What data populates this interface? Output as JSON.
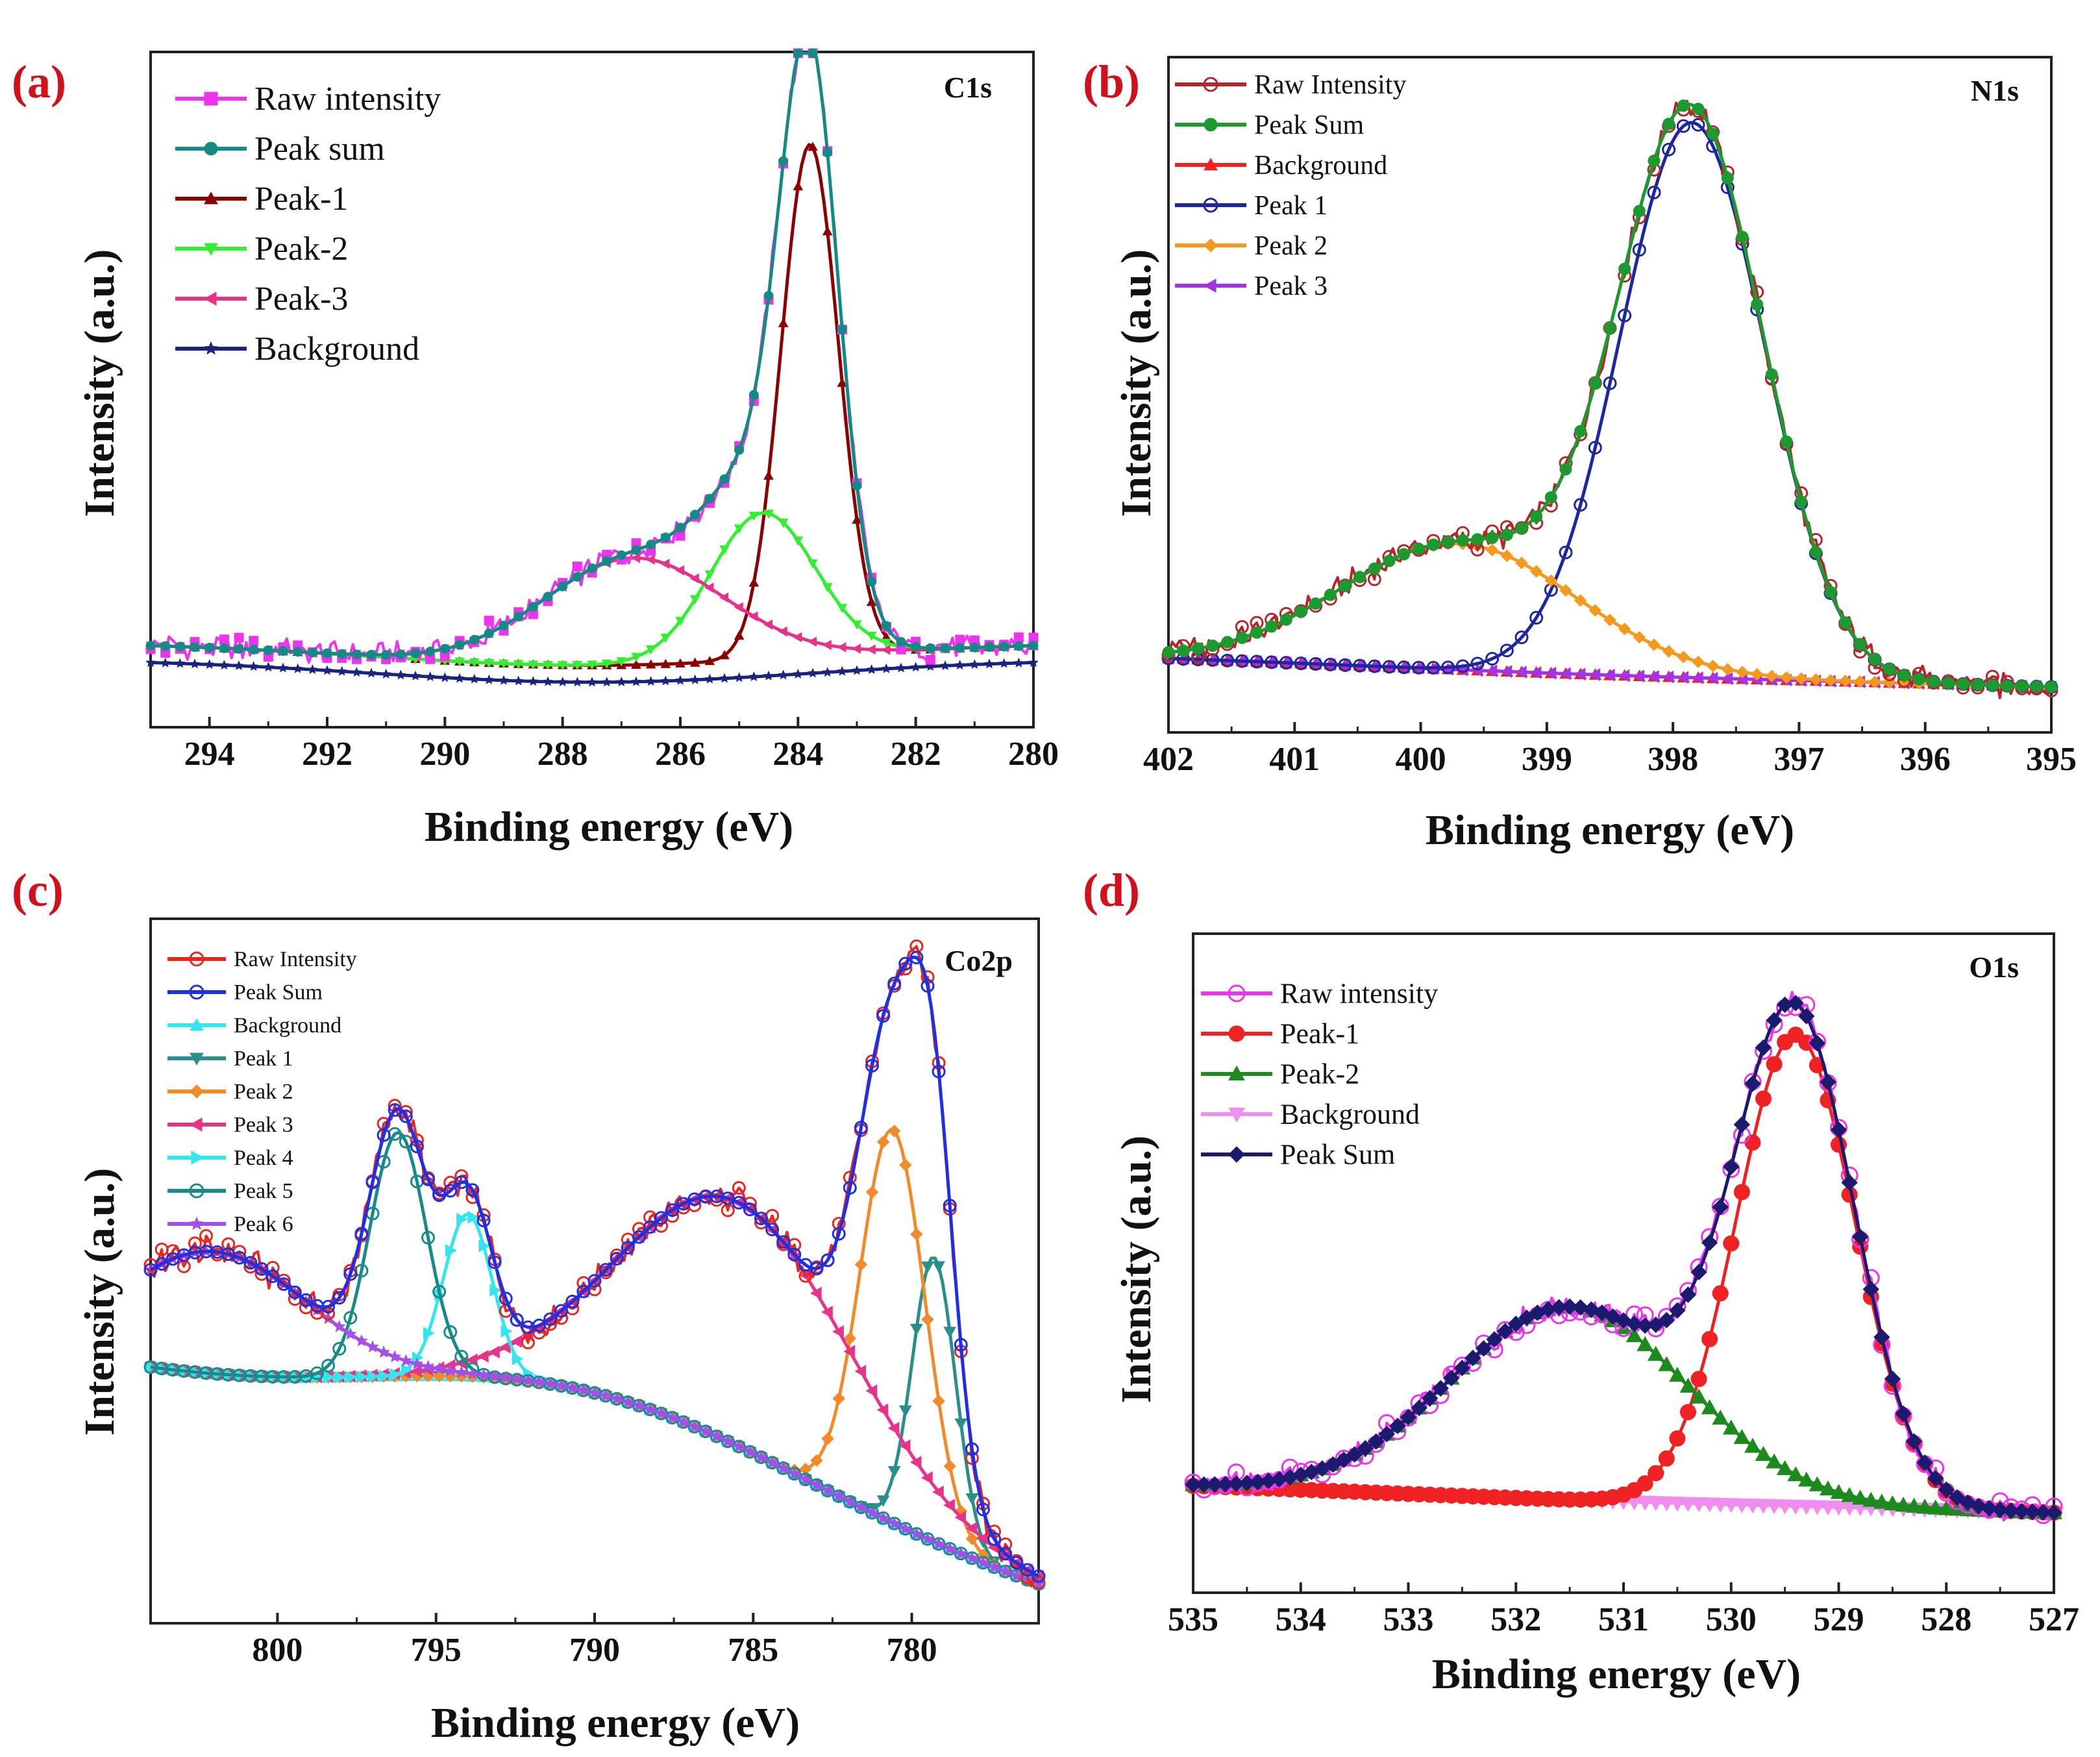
{
  "figure": {
    "background": "#ffffff"
  },
  "chart_data": [
    {
      "id": "a",
      "type": "line",
      "panel_label": "(a)",
      "title": "C1s",
      "xlabel": "Binding energy (eV)",
      "ylabel": "Intensity (a.u.)",
      "xlim": [
        295,
        280
      ],
      "ylim": [
        -0.12,
        1.08
      ],
      "xticks": [
        294,
        292,
        290,
        288,
        286,
        284,
        282,
        280
      ],
      "xtick_labels": [
        "294",
        "292",
        "290",
        "288",
        "286",
        "284",
        "282",
        "280"
      ],
      "legend": [
        "Raw intensity",
        "Peak sum",
        "Peak-1",
        "Peak-2",
        "Peak-3",
        "Background"
      ],
      "baseline": 0.03,
      "background": {
        "left": 0.0,
        "mid": -0.04,
        "right": 0.0,
        "center": 287.5
      },
      "peaks": [
        {
          "name": "Peak-1",
          "center": 283.8,
          "fwhm": 1.15,
          "height": 0.91,
          "color": "#8b0000"
        },
        {
          "name": "Peak-2",
          "center": 284.6,
          "fwhm": 2.1,
          "height": 0.26,
          "color": "#33ee33"
        },
        {
          "name": "Peak-3",
          "center": 286.8,
          "fwhm": 3.6,
          "height": 0.19,
          "color": "#e6338a"
        }
      ],
      "series": [
        {
          "name": "Raw intensity",
          "role": "raw",
          "color": "#ee33ee",
          "marker": "square"
        },
        {
          "name": "Peak sum",
          "role": "sum",
          "color": "#138a86",
          "marker": "circle"
        },
        {
          "name": "Peak-1",
          "role": "peak",
          "peak": 0,
          "color": "#8b0000",
          "marker": "triangle"
        },
        {
          "name": "Peak-2",
          "role": "peak",
          "peak": 1,
          "color": "#33ee33",
          "marker": "tri-down"
        },
        {
          "name": "Peak-3",
          "role": "peak",
          "peak": 2,
          "color": "#e6338a",
          "marker": "tri-left"
        },
        {
          "name": "Background",
          "role": "background",
          "color": "#1a237e",
          "marker": "star"
        }
      ]
    },
    {
      "id": "b",
      "type": "line",
      "panel_label": "(b)",
      "title": "N1s",
      "xlabel": "Binding energy (eV)",
      "ylabel": "Intensity (a.u.)",
      "xlim": [
        402,
        395
      ],
      "ylim": [
        -0.08,
        1.1
      ],
      "xticks": [
        402,
        401,
        400,
        399,
        398,
        397,
        396,
        395
      ],
      "xtick_labels": [
        "402",
        "401",
        "400",
        "399",
        "398",
        "397",
        "396",
        "395"
      ],
      "legend": [
        "Raw Intensity",
        "Peak Sum",
        "Background",
        "Peak 1",
        "Peak 2",
        "Peak 3"
      ],
      "baseline": 0.0,
      "background": {
        "left": 0.05,
        "mid": 0.02,
        "right": 0.0,
        "center": 398.5
      },
      "peaks": [
        {
          "name": "Peak 1",
          "center": 397.85,
          "fwhm": 1.35,
          "height": 0.97,
          "color": "#1c27a0"
        },
        {
          "name": "Peak 2",
          "center": 399.7,
          "fwhm": 2.2,
          "height": 0.22,
          "color": "#f39a1e"
        }
      ],
      "series": [
        {
          "name": "Raw Intensity",
          "role": "raw",
          "color": "#b3282d",
          "marker": "circle-open"
        },
        {
          "name": "Peak Sum",
          "role": "sum",
          "color": "#1d9a2f",
          "marker": "circle"
        },
        {
          "name": "Background",
          "role": "background",
          "color": "#ee2222",
          "marker": "triangle"
        },
        {
          "name": "Peak 1",
          "role": "peak",
          "peak": 0,
          "color": "#1c27a0",
          "marker": "circle-open"
        },
        {
          "name": "Peak 2",
          "role": "peak",
          "peak": 1,
          "color": "#f39a1e",
          "marker": "diamond"
        },
        {
          "name": "Peak 3",
          "role": "background",
          "color": "#a432e6",
          "marker": "tri-left"
        }
      ]
    },
    {
      "id": "c",
      "type": "line",
      "panel_label": "(c)",
      "title": "Co2p",
      "xlabel": "Binding energy (eV)",
      "ylabel": "Intensity (a.u.)",
      "xlim": [
        804,
        776
      ],
      "ylim": [
        -0.04,
        1.0
      ],
      "xticks": [
        800,
        795,
        790,
        785,
        780
      ],
      "xtick_labels": [
        "800",
        "795",
        "790",
        "785",
        "780"
      ],
      "legend": [
        "Raw Intensity",
        "Peak Sum",
        "Background",
        "Peak 1",
        "Peak 2",
        "Peak 3",
        "Peak 4",
        "Peak 5",
        "Peak 6"
      ],
      "baseline": 0.0,
      "background": {
        "left": 0.32,
        "mid": 0.3,
        "right": 0.0,
        "center": 790
      },
      "peaks": [
        {
          "name": "Peak 1",
          "center": 779.3,
          "fwhm": 1.6,
          "height": 0.42,
          "color": "#2a8f8a"
        },
        {
          "name": "Peak 2",
          "center": 780.6,
          "fwhm": 2.4,
          "height": 0.58,
          "color": "#f08a2a"
        },
        {
          "name": "Peak 3",
          "center": 785.5,
          "fwhm": 8.5,
          "height": 0.36,
          "color": "#e8338a"
        },
        {
          "name": "Peak 4",
          "center": 794.0,
          "fwhm": 1.8,
          "height": 0.24,
          "color": "#33e6ee"
        },
        {
          "name": "Peak 5",
          "center": 796.2,
          "fwhm": 2.1,
          "height": 0.36,
          "color": "#198a8a"
        },
        {
          "name": "Peak 6",
          "center": 802.0,
          "fwhm": 7.0,
          "height": 0.18,
          "color": "#a44fe6"
        }
      ],
      "series": [
        {
          "name": "Raw Intensity",
          "role": "raw",
          "color": "#e8281e",
          "marker": "circle-open"
        },
        {
          "name": "Peak Sum",
          "role": "sum",
          "color": "#1e2fe6",
          "marker": "circle-open"
        },
        {
          "name": "Background",
          "role": "background",
          "color": "#33e6ee",
          "marker": "triangle"
        },
        {
          "name": "Peak 1",
          "role": "peak",
          "peak": 0,
          "color": "#2a8f8a",
          "marker": "tri-down"
        },
        {
          "name": "Peak 2",
          "role": "peak",
          "peak": 1,
          "color": "#f08a2a",
          "marker": "diamond"
        },
        {
          "name": "Peak 3",
          "role": "peak",
          "peak": 2,
          "color": "#e8338a",
          "marker": "tri-left"
        },
        {
          "name": "Peak 4",
          "role": "peak",
          "peak": 3,
          "color": "#33e6ee",
          "marker": "tri-right"
        },
        {
          "name": "Peak 5",
          "role": "peak",
          "peak": 4,
          "color": "#198a8a",
          "marker": "circle-open"
        },
        {
          "name": "Peak 6",
          "role": "peak",
          "peak": 5,
          "color": "#a44fe6",
          "marker": "star"
        }
      ]
    },
    {
      "id": "d",
      "type": "line",
      "panel_label": "(d)",
      "title": "O1s",
      "xlabel": "Binding energy (eV)",
      "ylabel": "Intensity (a.u.)",
      "xlim": [
        535,
        527
      ],
      "ylim": [
        -0.15,
        1.08
      ],
      "xticks": [
        535,
        534,
        533,
        532,
        531,
        530,
        529,
        528,
        527
      ],
      "xtick_labels": [
        "535",
        "534",
        "533",
        "532",
        "531",
        "530",
        "529",
        "528",
        "527"
      ],
      "legend": [
        "Raw intensity",
        "Peak-1",
        "Peak-2",
        "Background",
        "Peak Sum"
      ],
      "baseline": 0.0,
      "background": {
        "left": 0.05,
        "mid": 0.02,
        "right": 0.0,
        "center": 531
      },
      "peaks": [
        {
          "name": "Peak-1",
          "center": 529.4,
          "fwhm": 1.3,
          "height": 0.88,
          "color": "#ee2222"
        },
        {
          "name": "Peak-2",
          "center": 531.5,
          "fwhm": 2.6,
          "height": 0.36,
          "color": "#1d8a1d"
        }
      ],
      "series": [
        {
          "name": "Raw intensity",
          "role": "raw",
          "color": "#ee33ee",
          "marker": "circle-open"
        },
        {
          "name": "Peak-1",
          "role": "peak",
          "peak": 0,
          "color": "#ee2222",
          "marker": "circle"
        },
        {
          "name": "Peak-2",
          "role": "peak",
          "peak": 1,
          "color": "#1d8a1d",
          "marker": "triangle"
        },
        {
          "name": "Background",
          "role": "background",
          "color": "#f08ef0",
          "marker": "tri-down"
        },
        {
          "name": "Peak Sum",
          "role": "sum",
          "color": "#1a1a6e",
          "marker": "diamond"
        }
      ]
    }
  ]
}
